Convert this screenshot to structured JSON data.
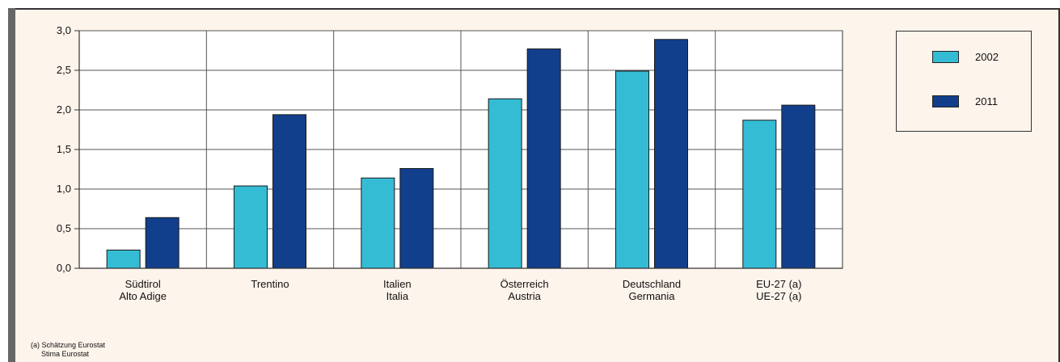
{
  "chart_data": {
    "type": "bar",
    "categories": [
      [
        "Südtirol",
        "Alto Adige"
      ],
      [
        "Trentino"
      ],
      [
        "Italien",
        "Italia"
      ],
      [
        "Österreich",
        "Austria"
      ],
      [
        "Deutschland",
        "Germania"
      ],
      [
        "EU-27 (a)",
        "UE-27 (a)"
      ]
    ],
    "series": [
      {
        "name": "2002",
        "values": [
          0.23,
          1.04,
          1.14,
          2.14,
          2.49,
          1.87
        ],
        "color": "#35bcd5"
      },
      {
        "name": "2011",
        "values": [
          0.64,
          1.94,
          1.26,
          2.77,
          2.89,
          2.06
        ],
        "color": "#123f8c"
      }
    ],
    "ylim": [
      0,
      3.0
    ],
    "yticks": [
      "0,0",
      "0,5",
      "1,0",
      "1,5",
      "2,0",
      "2,5",
      "3,0"
    ],
    "grid": true,
    "legend_position": "top-right"
  },
  "footnote": {
    "line1": "(a) Schätzung Eurostat",
    "line2": "Stima Eurostat"
  }
}
